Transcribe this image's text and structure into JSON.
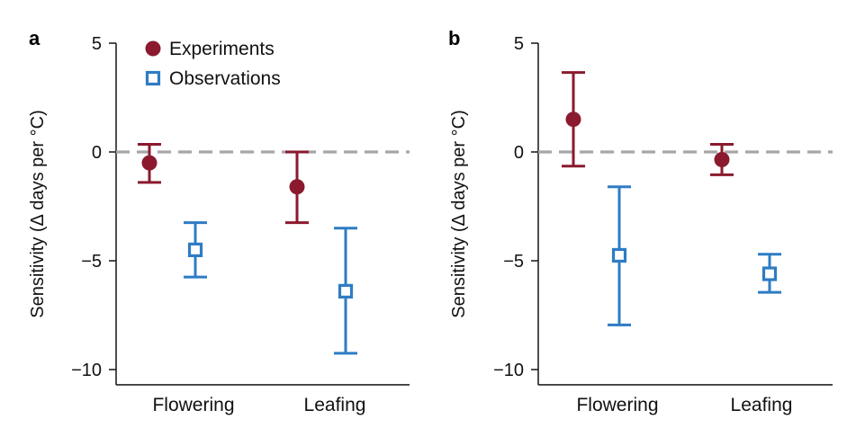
{
  "chart_data": [
    {
      "panel_label": "a",
      "type": "scatter",
      "ylabel": "Sensitivity (Δ days per °C)",
      "ylim": [
        -10.7,
        5.0
      ],
      "yticks": [
        5,
        0,
        -5,
        -10
      ],
      "ytick_labels": [
        "5",
        "0",
        "−5",
        "−10"
      ],
      "reference_line": 0,
      "categories": [
        "Flowering",
        "Leafing"
      ],
      "legend_position": "top-left",
      "series": [
        {
          "name": "Experiments",
          "marker": "filled-circle",
          "color": "#8b1a2e",
          "values": [
            -0.5,
            -1.6
          ],
          "lower": [
            -1.4,
            -3.25
          ],
          "upper": [
            0.35,
            0.0
          ]
        },
        {
          "name": "Observations",
          "marker": "open-square",
          "color": "#2e7cc4",
          "values": [
            -4.5,
            -6.4
          ],
          "lower": [
            -5.75,
            -9.25
          ],
          "upper": [
            -3.25,
            -3.5
          ]
        }
      ]
    },
    {
      "panel_label": "b",
      "type": "scatter",
      "ylabel": "Sensitivity (Δ days per °C)",
      "ylim": [
        -10.7,
        5.0
      ],
      "yticks": [
        5,
        0,
        -5,
        -10
      ],
      "ytick_labels": [
        "5",
        "0",
        "−5",
        "−10"
      ],
      "reference_line": 0,
      "categories": [
        "Flowering",
        "Leafing"
      ],
      "series": [
        {
          "name": "Experiments",
          "marker": "filled-circle",
          "color": "#8b1a2e",
          "values": [
            1.5,
            -0.35
          ],
          "lower": [
            -0.65,
            -1.05
          ],
          "upper": [
            3.65,
            0.35
          ]
        },
        {
          "name": "Observations",
          "marker": "open-square",
          "color": "#2e7cc4",
          "values": [
            -4.75,
            -5.6
          ],
          "lower": [
            -7.95,
            -6.45
          ],
          "upper": [
            -1.6,
            -4.7
          ]
        }
      ]
    }
  ],
  "colors": {
    "axis": "#222222",
    "reference_line": "#a6a6a6"
  }
}
